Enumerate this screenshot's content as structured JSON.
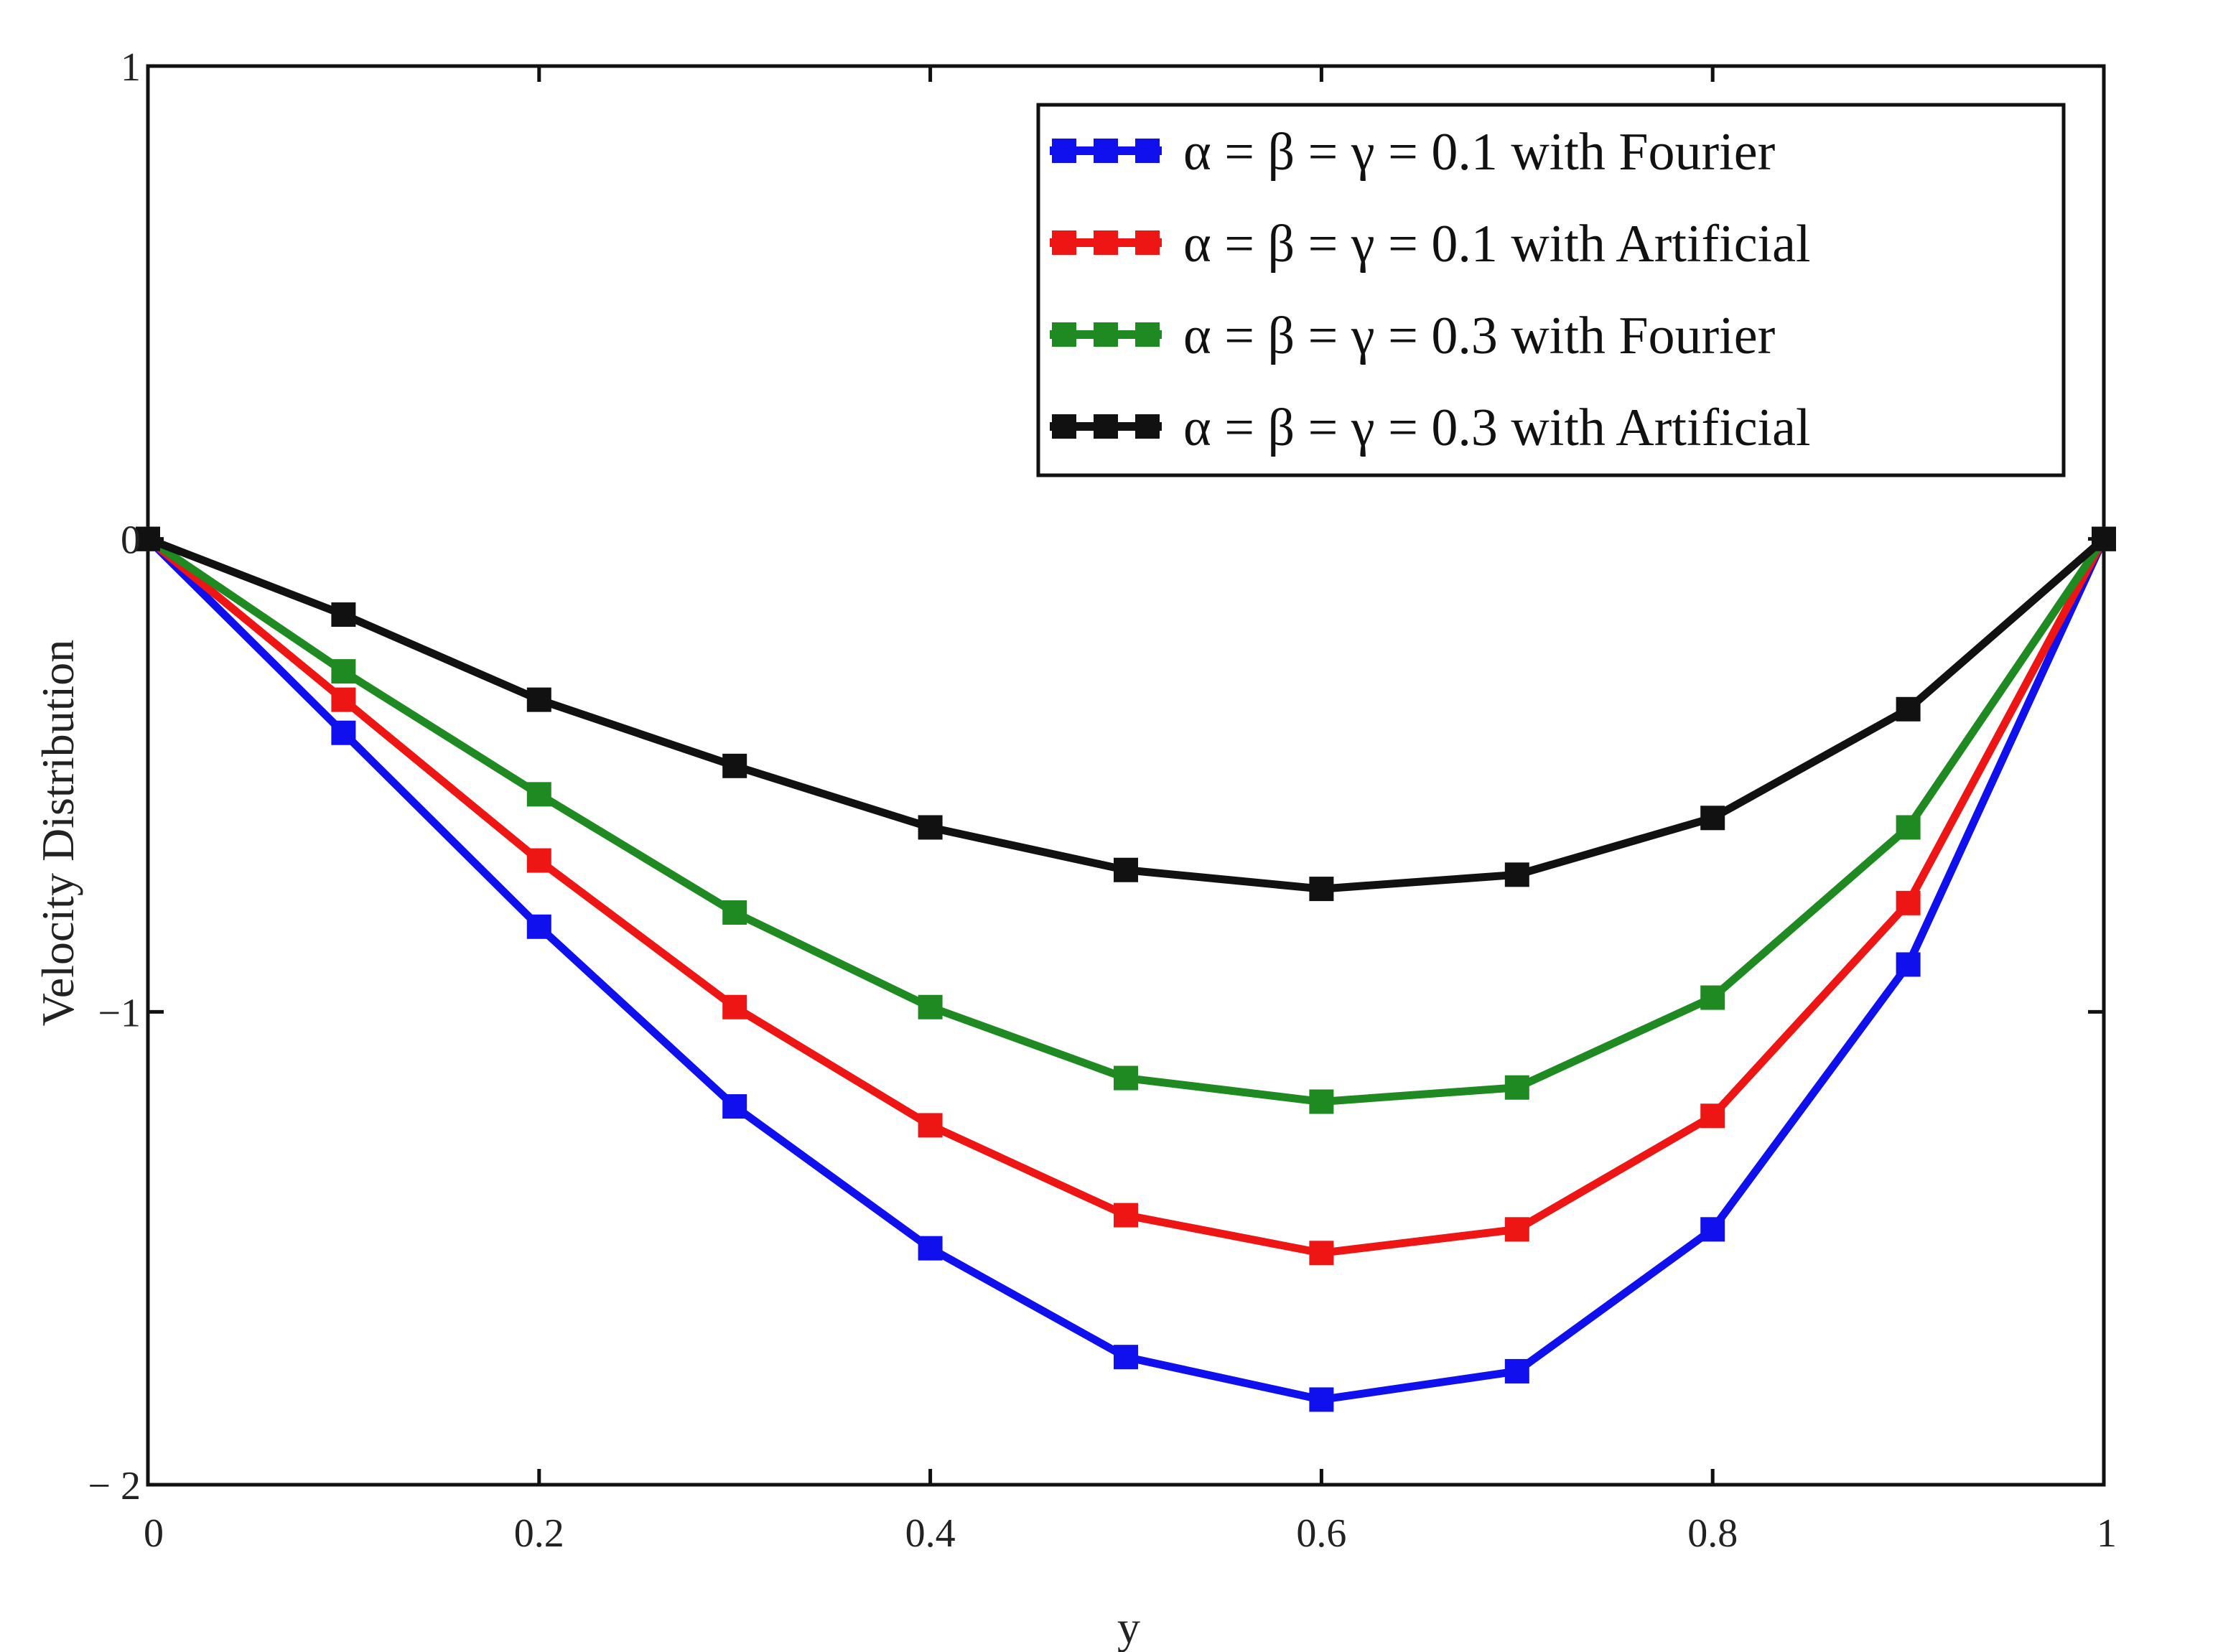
{
  "chart_data": {
    "type": "line",
    "title": "",
    "xlabel": "y",
    "ylabel": "Velocity  Distribution",
    "xlim": [
      0,
      1
    ],
    "ylim": [
      -2,
      1
    ],
    "x_ticks": [
      {
        "value": 0,
        "label": "0"
      },
      {
        "value": 0.2,
        "label": "0.2"
      },
      {
        "value": 0.4,
        "label": "0.4"
      },
      {
        "value": 0.6,
        "label": "0.6"
      },
      {
        "value": 0.8,
        "label": "0.8"
      },
      {
        "value": 1,
        "label": "1"
      }
    ],
    "y_ticks": [
      {
        "value": 1,
        "label": "1"
      },
      {
        "value": 0,
        "label": "0"
      },
      {
        "value": -1,
        "label": "−1"
      },
      {
        "value": -2,
        "label": "− 2"
      }
    ],
    "legend_position": "top-right",
    "grid": false,
    "x": [
      0,
      0.1,
      0.2,
      0.3,
      0.4,
      0.5,
      0.6,
      0.7,
      0.8,
      0.9,
      1.0
    ],
    "series": [
      {
        "name": "α = β = γ = 0.1  with Fourier",
        "color": "#1010ee",
        "values": [
          0,
          -0.41,
          -0.82,
          -1.2,
          -1.5,
          -1.73,
          -1.82,
          -1.76,
          -1.46,
          -0.9,
          0
        ]
      },
      {
        "name": "α = β = γ = 0.1  with Artificial",
        "color": "#ee1515",
        "values": [
          0,
          -0.34,
          -0.68,
          -0.99,
          -1.24,
          -1.43,
          -1.51,
          -1.46,
          -1.22,
          -0.77,
          0
        ]
      },
      {
        "name": "α = β = γ = 0.3  with Fourier",
        "color": "#1f8a22",
        "values": [
          0,
          -0.28,
          -0.54,
          -0.79,
          -0.99,
          -1.14,
          -1.19,
          -1.16,
          -0.97,
          -0.61,
          0
        ]
      },
      {
        "name": "α = β = γ = 0.3  with Artificial",
        "color": "#111111",
        "values": [
          0,
          -0.16,
          -0.34,
          -0.48,
          -0.61,
          -0.7,
          -0.74,
          -0.71,
          -0.59,
          -0.36,
          0
        ]
      }
    ]
  }
}
